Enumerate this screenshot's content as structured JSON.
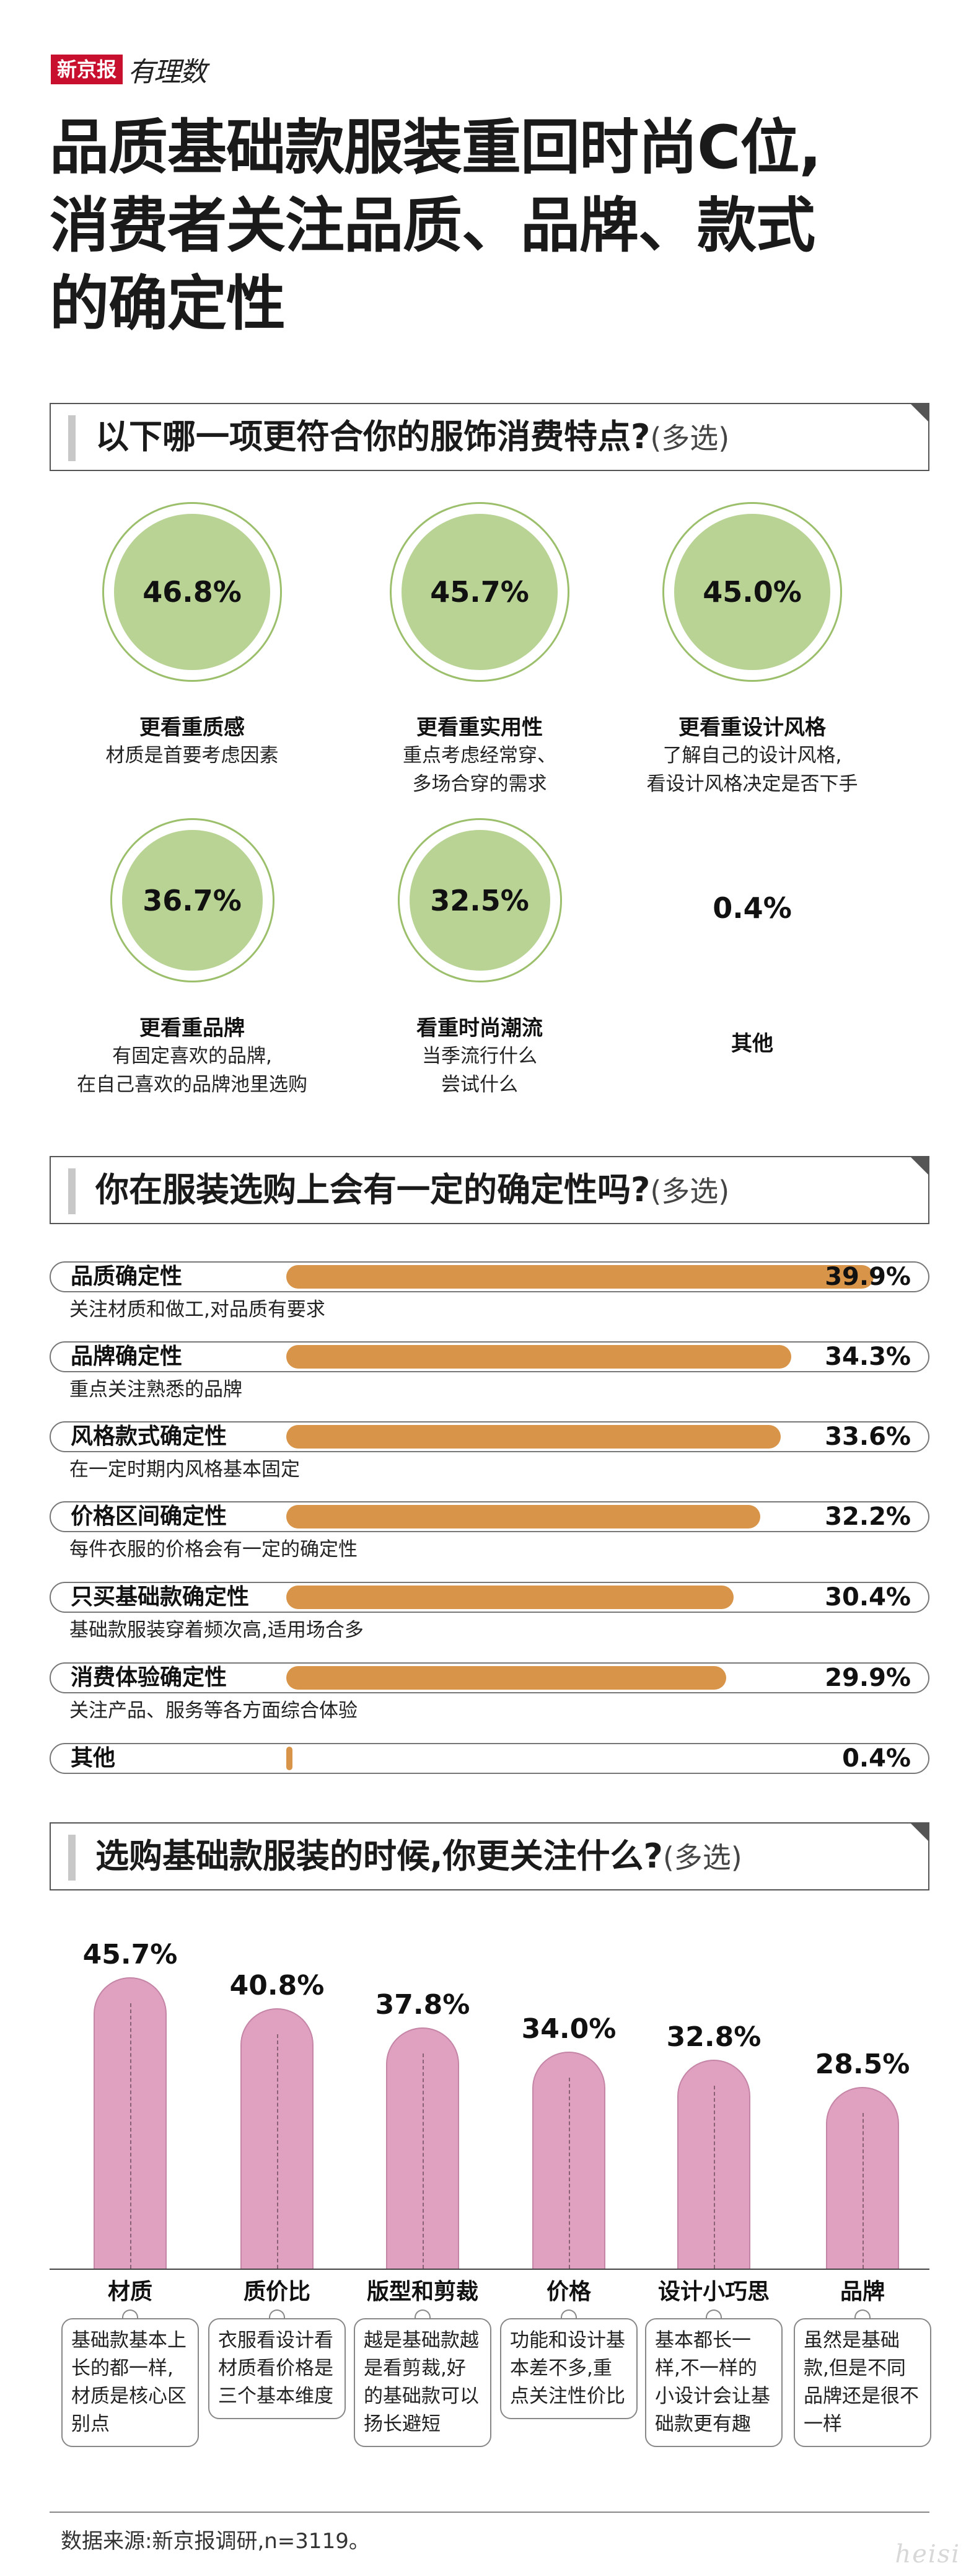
{
  "brand": {
    "badge": "新京报",
    "script": "有理数"
  },
  "title": [
    "品质基础款服装重回时尚C位,",
    "消费者关注品质、品牌、款式",
    "的确定性"
  ],
  "section1": {
    "question": "以下哪一项更符合你的服饰消费特点?",
    "suffix": "(多选)",
    "items": [
      {
        "value": 46.8,
        "pct": "46.8%",
        "name": "更看重质感",
        "desc": [
          "材质是首要考虑因素"
        ]
      },
      {
        "value": 45.7,
        "pct": "45.7%",
        "name": "更看重实用性",
        "desc": [
          "重点考虑经常穿、",
          "多场合穿的需求"
        ]
      },
      {
        "value": 45.0,
        "pct": "45.0%",
        "name": "更看重设计风格",
        "desc": [
          "了解自己的设计风格,",
          "看设计风格决定是否下手"
        ]
      },
      {
        "value": 36.7,
        "pct": "36.7%",
        "name": "更看重品牌",
        "desc": [
          "有固定喜欢的品牌,",
          "在自己喜欢的品牌池里选购"
        ]
      },
      {
        "value": 32.5,
        "pct": "32.5%",
        "name": "看重时尚潮流",
        "desc": [
          "当季流行什么",
          "尝试什么"
        ]
      },
      {
        "value": 0.4,
        "pct": "0.4%",
        "name": "其他",
        "desc": []
      }
    ]
  },
  "section2": {
    "question": "你在服装选购上会有一定的确定性吗?",
    "suffix": "(多选)",
    "items": [
      {
        "label": "品质确定性",
        "value": 39.9,
        "pct": "39.9%",
        "desc": "关注材质和做工,对品质有要求"
      },
      {
        "label": "品牌确定性",
        "value": 34.3,
        "pct": "34.3%",
        "desc": "重点关注熟悉的品牌"
      },
      {
        "label": "风格款式确定性",
        "value": 33.6,
        "pct": "33.6%",
        "desc": "在一定时期内风格基本固定"
      },
      {
        "label": "价格区间确定性",
        "value": 32.2,
        "pct": "32.2%",
        "desc": "每件衣服的价格会有一定的确定性"
      },
      {
        "label": "只买基础款确定性",
        "value": 30.4,
        "pct": "30.4%",
        "desc": "基础款服装穿着频次高,适用场合多"
      },
      {
        "label": "消费体验确定性",
        "value": 29.9,
        "pct": "29.9%",
        "desc": "关注产品、服务等各方面综合体验"
      },
      {
        "label": "其他",
        "value": 0.4,
        "pct": "0.4%",
        "desc": ""
      }
    ]
  },
  "section3": {
    "question": "选购基础款服装的时候,你更关注什么?",
    "suffix": "(多选)",
    "items": [
      {
        "label": "材质",
        "value": 45.7,
        "pct": "45.7%",
        "note": "基础款基本上长的都一样,材质是核心区别点"
      },
      {
        "label": "质价比",
        "value": 40.8,
        "pct": "40.8%",
        "note": "衣服看设计看材质看价格是三个基本维度"
      },
      {
        "label": "版型和剪裁",
        "value": 37.8,
        "pct": "37.8%",
        "note": "越是基础款越是看剪裁,好的基础款可以扬长避短"
      },
      {
        "label": "价格",
        "value": 34.0,
        "pct": "34.0%",
        "note": "功能和设计基本差不多,重点关注性价比"
      },
      {
        "label": "设计小巧思",
        "value": 32.8,
        "pct": "32.8%",
        "note": "基本都长一样,不一样的小设计会让基础款更有趣"
      },
      {
        "label": "品牌",
        "value": 28.5,
        "pct": "28.5%",
        "note": "虽然是基础款,但是不同品牌还是很不一样"
      }
    ]
  },
  "chart_data": [
    {
      "type": "bar",
      "title": "以下哪一项更符合你的服饰消费特点?(多选)",
      "categories": [
        "更看重质感",
        "更看重实用性",
        "更看重设计风格",
        "更看重品牌",
        "看重时尚潮流",
        "其他"
      ],
      "values": [
        46.8,
        45.7,
        45.0,
        36.7,
        32.5,
        0.4
      ]
    },
    {
      "type": "bar",
      "title": "你在服装选购上会有一定的确定性吗?(多选)",
      "categories": [
        "品质确定性",
        "品牌确定性",
        "风格款式确定性",
        "价格区间确定性",
        "只买基础款确定性",
        "消费体验确定性",
        "其他"
      ],
      "values": [
        39.9,
        34.3,
        33.6,
        32.2,
        30.4,
        29.9,
        0.4
      ]
    },
    {
      "type": "bar",
      "title": "选购基础款服装的时候,你更关注什么?(多选)",
      "categories": [
        "材质",
        "质价比",
        "版型和剪裁",
        "价格",
        "设计小巧思",
        "品牌"
      ],
      "values": [
        45.7,
        40.8,
        37.8,
        34.0,
        32.8,
        28.5
      ]
    }
  ],
  "source": "数据来源:新京报调研,n=3119。",
  "watermark": "heisi",
  "colors": {
    "circle": "#b8d394",
    "hbar": "#d8954a",
    "vbar": "#e0a1c0",
    "brand": "#c8102e"
  }
}
